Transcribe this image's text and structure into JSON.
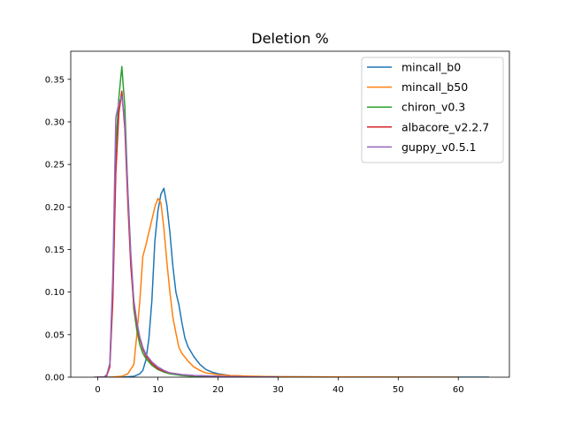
{
  "chart_data": {
    "type": "line",
    "title": "Deletion %",
    "xlabel": "",
    "ylabel": "",
    "xlim": [
      -4.5,
      68.5
    ],
    "ylim": [
      0,
      0.383
    ],
    "xticks": [
      0,
      10,
      20,
      30,
      40,
      50,
      60
    ],
    "xtick_labels": [
      "0",
      "10",
      "20",
      "30",
      "40",
      "50",
      "60"
    ],
    "yticks": [
      0,
      0.05,
      0.1,
      0.15,
      0.2,
      0.25,
      0.3,
      0.35
    ],
    "ytick_labels": [
      "0.00",
      "0.05",
      "0.10",
      "0.15",
      "0.20",
      "0.25",
      "0.30",
      "0.35"
    ],
    "grid": false,
    "legend_position": "top-right",
    "series": [
      {
        "name": "mincall_b0",
        "color": "#1f77b4",
        "points": [
          [
            0,
            0
          ],
          [
            4,
            0
          ],
          [
            6,
            0.001
          ],
          [
            7,
            0.004
          ],
          [
            7.5,
            0.008
          ],
          [
            8,
            0.02
          ],
          [
            8.5,
            0.045
          ],
          [
            9,
            0.09
          ],
          [
            9.5,
            0.16
          ],
          [
            10,
            0.195
          ],
          [
            10.5,
            0.215
          ],
          [
            11,
            0.222
          ],
          [
            11.5,
            0.202
          ],
          [
            12,
            0.17
          ],
          [
            12.5,
            0.13
          ],
          [
            13,
            0.1
          ],
          [
            13.5,
            0.085
          ],
          [
            14,
            0.064
          ],
          [
            14.5,
            0.046
          ],
          [
            15,
            0.036
          ],
          [
            16,
            0.024
          ],
          [
            17,
            0.015
          ],
          [
            18,
            0.009
          ],
          [
            19,
            0.006
          ],
          [
            20,
            0.004
          ],
          [
            22,
            0.002
          ],
          [
            25,
            0.001
          ],
          [
            30,
            0.0005
          ],
          [
            40,
            0.0002
          ],
          [
            50,
            0.0001
          ],
          [
            65,
            0
          ]
        ]
      },
      {
        "name": "mincall_b50",
        "color": "#ff7f0e",
        "points": [
          [
            2,
            0
          ],
          [
            4,
            0.001
          ],
          [
            5,
            0.004
          ],
          [
            6,
            0.015
          ],
          [
            6.5,
            0.05
          ],
          [
            7,
            0.09
          ],
          [
            7.5,
            0.142
          ],
          [
            8,
            0.155
          ],
          [
            8.5,
            0.17
          ],
          [
            9,
            0.185
          ],
          [
            9.5,
            0.2
          ],
          [
            10,
            0.21
          ],
          [
            10.5,
            0.205
          ],
          [
            11,
            0.175
          ],
          [
            11.5,
            0.135
          ],
          [
            12,
            0.1
          ],
          [
            12.5,
            0.07
          ],
          [
            13,
            0.052
          ],
          [
            13.5,
            0.035
          ],
          [
            14,
            0.028
          ],
          [
            15,
            0.019
          ],
          [
            16,
            0.012
          ],
          [
            17,
            0.008
          ],
          [
            18,
            0.005
          ],
          [
            20,
            0.003
          ],
          [
            22,
            0.002
          ],
          [
            26,
            0.001
          ],
          [
            30,
            0.0005
          ],
          [
            40,
            0.0002
          ],
          [
            50,
            0.0001
          ],
          [
            60,
            0
          ]
        ]
      },
      {
        "name": "chiron_v0.3",
        "color": "#2ca02c",
        "points": [
          [
            0,
            0
          ],
          [
            1,
            0
          ],
          [
            1.5,
            0.002
          ],
          [
            2,
            0.015
          ],
          [
            2.5,
            0.1
          ],
          [
            3,
            0.27
          ],
          [
            3.5,
            0.328
          ],
          [
            4,
            0.365
          ],
          [
            4.5,
            0.318
          ],
          [
            5,
            0.218
          ],
          [
            5.5,
            0.14
          ],
          [
            6,
            0.08
          ],
          [
            6.5,
            0.055
          ],
          [
            7,
            0.038
          ],
          [
            7.5,
            0.028
          ],
          [
            8,
            0.022
          ],
          [
            9,
            0.014
          ],
          [
            10,
            0.009
          ],
          [
            11,
            0.006
          ],
          [
            12,
            0.004
          ],
          [
            14,
            0.002
          ],
          [
            16,
            0.001
          ],
          [
            20,
            0.0005
          ],
          [
            25,
            0.0002
          ],
          [
            30,
            0
          ]
        ]
      },
      {
        "name": "albacore_v2.2.7",
        "color": "#d62728",
        "points": [
          [
            0,
            0
          ],
          [
            1,
            0
          ],
          [
            1.5,
            0.002
          ],
          [
            2,
            0.012
          ],
          [
            2.5,
            0.09
          ],
          [
            3,
            0.24
          ],
          [
            3.5,
            0.31
          ],
          [
            4,
            0.336
          ],
          [
            4.5,
            0.292
          ],
          [
            5,
            0.205
          ],
          [
            5.5,
            0.13
          ],
          [
            6,
            0.085
          ],
          [
            6.5,
            0.062
          ],
          [
            7,
            0.045
          ],
          [
            7.5,
            0.033
          ],
          [
            8,
            0.025
          ],
          [
            9,
            0.016
          ],
          [
            10,
            0.01
          ],
          [
            11,
            0.007
          ],
          [
            12,
            0.005
          ],
          [
            14,
            0.003
          ],
          [
            16,
            0.002
          ],
          [
            20,
            0.001
          ],
          [
            25,
            0.0003
          ],
          [
            30,
            0
          ]
        ]
      },
      {
        "name": "guppy_v0.5.1",
        "color": "#9467bd",
        "points": [
          [
            -0.5,
            0
          ],
          [
            1,
            0
          ],
          [
            1.5,
            0.003
          ],
          [
            2,
            0.016
          ],
          [
            2.5,
            0.12
          ],
          [
            3,
            0.305
          ],
          [
            3.5,
            0.322
          ],
          [
            4,
            0.33
          ],
          [
            4.5,
            0.3
          ],
          [
            5,
            0.22
          ],
          [
            5.5,
            0.145
          ],
          [
            6,
            0.09
          ],
          [
            6.5,
            0.065
          ],
          [
            7,
            0.047
          ],
          [
            7.5,
            0.035
          ],
          [
            8,
            0.027
          ],
          [
            9,
            0.018
          ],
          [
            10,
            0.012
          ],
          [
            11,
            0.008
          ],
          [
            12,
            0.005
          ],
          [
            14,
            0.003
          ],
          [
            16,
            0.002
          ],
          [
            20,
            0.001
          ],
          [
            25,
            0.0003
          ],
          [
            30,
            0
          ]
        ]
      }
    ]
  }
}
